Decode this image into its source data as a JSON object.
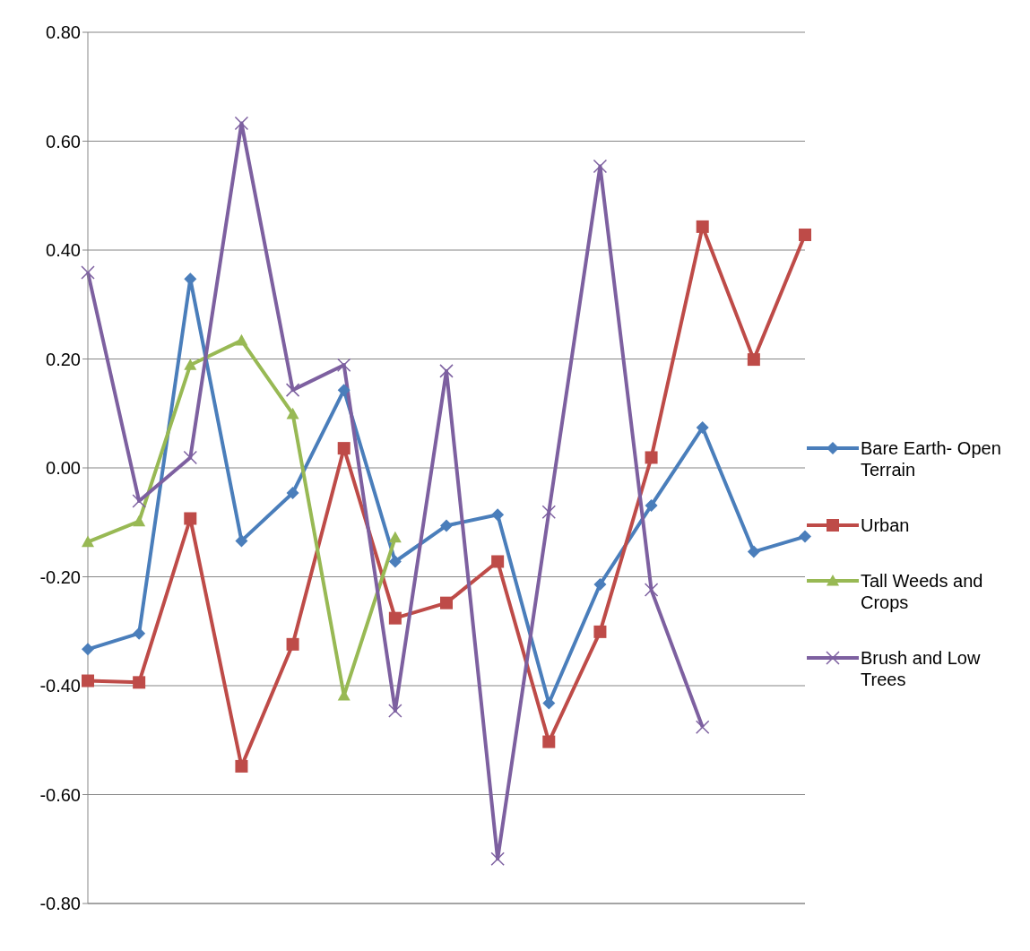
{
  "chart_data": {
    "type": "line",
    "categories": [
      null,
      null,
      null,
      null,
      null,
      null,
      null,
      null,
      null,
      null,
      null,
      null,
      null,
      null,
      null
    ],
    "ylim": [
      -0.8,
      0.8
    ],
    "yticks": [
      {
        "value": -0.8,
        "label": "-0.80"
      },
      {
        "value": -0.6,
        "label": "-0.60"
      },
      {
        "value": -0.4,
        "label": "-0.40"
      },
      {
        "value": -0.2,
        "label": "-0.20"
      },
      {
        "value": 0,
        "label": "0.00"
      },
      {
        "value": 0.2,
        "label": "0.20"
      },
      {
        "value": 0.4,
        "label": "0.40"
      },
      {
        "value": 0.6,
        "label": "0.60"
      },
      {
        "value": 0.8,
        "label": "0.80"
      }
    ],
    "grid": "y",
    "legend": "right",
    "tick_labels": "y",
    "line_style": "solid",
    "series": [
      {
        "name": "Bare Earth- Open Terrain",
        "color": "#4a7ebb",
        "marker": "diamond",
        "values": [
          -0.333,
          -0.304,
          0.347,
          -0.134,
          -0.046,
          0.143,
          -0.172,
          -0.106,
          -0.086,
          -0.432,
          -0.214,
          -0.069,
          0.074,
          -0.154,
          -0.126
        ]
      },
      {
        "name": "Urban",
        "color": "#be4b48",
        "marker": "square",
        "values": [
          -0.391,
          -0.394,
          -0.093,
          -0.548,
          -0.324,
          0.036,
          -0.276,
          -0.248,
          -0.172,
          -0.503,
          -0.301,
          0.019,
          0.443,
          0.199,
          0.428
        ]
      },
      {
        "name": "Tall Weeds and Crops",
        "color": "#98b954",
        "marker": "triangle",
        "values": [
          -0.136,
          -0.098,
          0.189,
          0.234,
          0.099,
          -0.418,
          -0.128,
          null,
          null,
          null,
          null,
          null,
          null,
          null,
          null
        ]
      },
      {
        "name": "Brush and Low Trees",
        "color": "#7d60a0",
        "marker": "cross",
        "values": [
          0.359,
          -0.061,
          0.019,
          0.633,
          0.143,
          0.189,
          -0.446,
          0.178,
          -0.718,
          -0.081,
          0.554,
          -0.224,
          -0.476,
          null,
          null
        ]
      }
    ]
  }
}
